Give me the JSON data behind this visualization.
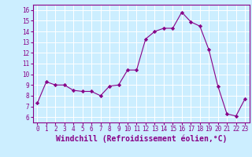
{
  "x": [
    0,
    1,
    2,
    3,
    4,
    5,
    6,
    7,
    8,
    9,
    10,
    11,
    12,
    13,
    14,
    15,
    16,
    17,
    18,
    19,
    20,
    21,
    22,
    23
  ],
  "y": [
    7.3,
    9.3,
    9.0,
    9.0,
    8.5,
    8.4,
    8.4,
    8.0,
    8.9,
    9.0,
    10.4,
    10.4,
    13.3,
    14.0,
    14.3,
    14.3,
    15.8,
    14.9,
    14.5,
    12.3,
    8.9,
    6.3,
    6.1,
    7.7
  ],
  "line_color": "#880088",
  "marker": "D",
  "marker_size": 2.2,
  "bg_color": "#cceeff",
  "grid_color": "#ffffff",
  "xlabel": "Windchill (Refroidissement éolien,°C)",
  "xlabel_color": "#880088",
  "ylabel_ticks": [
    6,
    7,
    8,
    9,
    10,
    11,
    12,
    13,
    14,
    15,
    16
  ],
  "xlim": [
    -0.5,
    23.5
  ],
  "ylim": [
    5.5,
    16.5
  ],
  "xtick_labels": [
    "0",
    "1",
    "2",
    "3",
    "4",
    "5",
    "6",
    "7",
    "8",
    "9",
    "10",
    "11",
    "12",
    "13",
    "14",
    "15",
    "16",
    "17",
    "18",
    "19",
    "20",
    "21",
    "22",
    "23"
  ],
  "tick_color": "#880088",
  "tick_fontsize": 5.5,
  "xlabel_fontsize": 7.0
}
